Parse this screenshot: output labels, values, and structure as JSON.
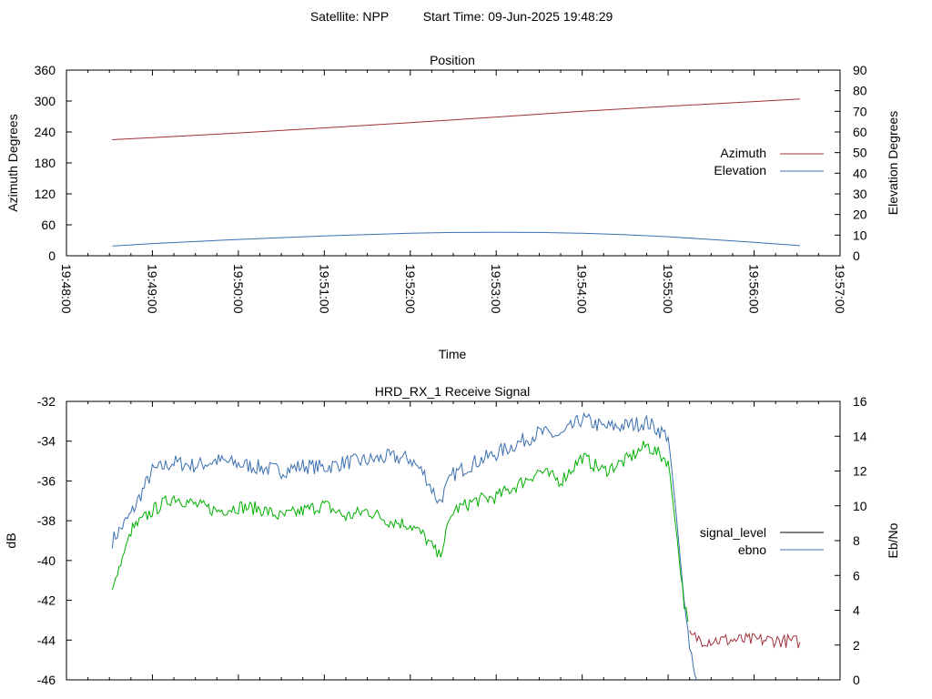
{
  "header": {
    "satellite": "Satellite: NPP",
    "start_time": "Start Time: 09-Jun-2025 19:48:29"
  },
  "chart_data": [
    {
      "type": "line",
      "title": "Position",
      "xlabel": "Time",
      "ylabel": "Azimuth Degrees",
      "y2label": "Elevation Degrees",
      "x_ticks": [
        "19:48:00",
        "19:49:00",
        "19:50:00",
        "19:51:00",
        "19:52:00",
        "19:53:00",
        "19:54:00",
        "19:55:00",
        "19:56:00",
        "19:57:00"
      ],
      "xlim": [
        "19:48:00",
        "19:57:00"
      ],
      "ylim": [
        0,
        360
      ],
      "y_ticks": [
        0,
        60,
        120,
        180,
        240,
        300,
        360
      ],
      "y2lim": [
        0,
        90
      ],
      "y2_ticks": [
        0,
        10,
        20,
        30,
        40,
        50,
        60,
        70,
        80,
        90
      ],
      "legend_position": "right",
      "series": [
        {
          "name": "Azimuth",
          "axis": "y",
          "color": "#a0303a",
          "x": [
            "19:48:32",
            "19:49:00",
            "19:50:00",
            "19:51:00",
            "19:52:00",
            "19:53:00",
            "19:54:00",
            "19:55:00",
            "19:56:00",
            "19:56:32"
          ],
          "values": [
            225,
            229,
            238,
            248,
            258,
            269,
            280,
            290,
            299,
            304
          ]
        },
        {
          "name": "Elevation",
          "axis": "y2",
          "color": "#3b6fb0",
          "x": [
            "19:48:32",
            "19:49:00",
            "19:49:30",
            "19:50:00",
            "19:50:30",
            "19:51:00",
            "19:51:30",
            "19:52:00",
            "19:52:30",
            "19:53:00",
            "19:53:30",
            "19:54:00",
            "19:54:30",
            "19:55:00",
            "19:55:30",
            "19:56:00",
            "19:56:32"
          ],
          "values": [
            4.7,
            5.9,
            6.9,
            7.9,
            8.8,
            9.6,
            10.3,
            10.9,
            11.3,
            11.4,
            11.3,
            10.9,
            10.2,
            9.2,
            7.9,
            6.5,
            4.9
          ]
        }
      ]
    },
    {
      "type": "line",
      "title": "HRD_RX_1 Receive Signal",
      "ylabel": "dB",
      "y2label": "Eb/No",
      "xlim": [
        "19:48:00",
        "19:57:00"
      ],
      "ylim": [
        -46,
        -32
      ],
      "y_ticks": [
        -46,
        -44,
        -42,
        -40,
        -38,
        -36,
        -34,
        -32
      ],
      "y2lim": [
        0,
        16
      ],
      "y2_ticks": [
        0,
        2,
        4,
        6,
        8,
        10,
        12,
        14,
        16
      ],
      "legend_position": "right",
      "series": [
        {
          "name": "signal_level",
          "axis": "y",
          "color": "#00b000",
          "color_low": "#a0303a",
          "x": [
            "19:48:32",
            "19:48:45",
            "19:49:00",
            "19:49:15",
            "19:49:30",
            "19:49:45",
            "19:50:00",
            "19:50:15",
            "19:50:30",
            "19:50:45",
            "19:51:00",
            "19:51:15",
            "19:51:30",
            "19:51:45",
            "19:52:00",
            "19:52:10",
            "19:52:20",
            "19:52:30",
            "19:52:45",
            "19:53:00",
            "19:53:15",
            "19:53:30",
            "19:53:45",
            "19:54:00",
            "19:54:15",
            "19:54:30",
            "19:54:45",
            "19:55:00",
            "19:55:05",
            "19:55:10",
            "19:55:15",
            "19:55:25",
            "19:55:45",
            "19:56:00",
            "19:56:15",
            "19:56:32"
          ],
          "values": [
            -41.5,
            -38.5,
            -37.5,
            -36.8,
            -37.2,
            -37.5,
            -37.3,
            -37.4,
            -37.8,
            -37.5,
            -37.2,
            -37.8,
            -37.5,
            -38.0,
            -38.2,
            -38.8,
            -39.8,
            -37.5,
            -37.0,
            -36.8,
            -36.2,
            -35.5,
            -36.0,
            -34.8,
            -35.5,
            -35.0,
            -34.2,
            -35.0,
            -38.0,
            -41.5,
            -43.8,
            -44.0,
            -44.0,
            -44.0,
            -44.0,
            -44.1
          ]
        },
        {
          "name": "ebno",
          "axis": "y2",
          "color": "#3b6fb0",
          "x": [
            "19:48:32",
            "19:48:45",
            "19:49:00",
            "19:49:15",
            "19:49:30",
            "19:49:45",
            "19:50:00",
            "19:50:15",
            "19:50:30",
            "19:50:45",
            "19:51:00",
            "19:51:15",
            "19:51:30",
            "19:51:45",
            "19:52:00",
            "19:52:10",
            "19:52:20",
            "19:52:30",
            "19:52:45",
            "19:53:00",
            "19:53:15",
            "19:53:30",
            "19:53:45",
            "19:54:00",
            "19:54:15",
            "19:54:30",
            "19:54:45",
            "19:55:00",
            "19:55:05",
            "19:55:10",
            "19:55:15",
            "19:55:20"
          ],
          "values": [
            8.0,
            9.5,
            12.0,
            12.5,
            12.3,
            12.6,
            12.4,
            12.2,
            12.0,
            12.3,
            12.2,
            12.5,
            12.6,
            12.8,
            12.7,
            11.8,
            10.2,
            11.8,
            12.5,
            13.0,
            13.6,
            14.2,
            14.0,
            15.0,
            14.5,
            14.6,
            14.8,
            14.0,
            10.0,
            5.5,
            2.0,
            0.0
          ]
        }
      ]
    }
  ]
}
